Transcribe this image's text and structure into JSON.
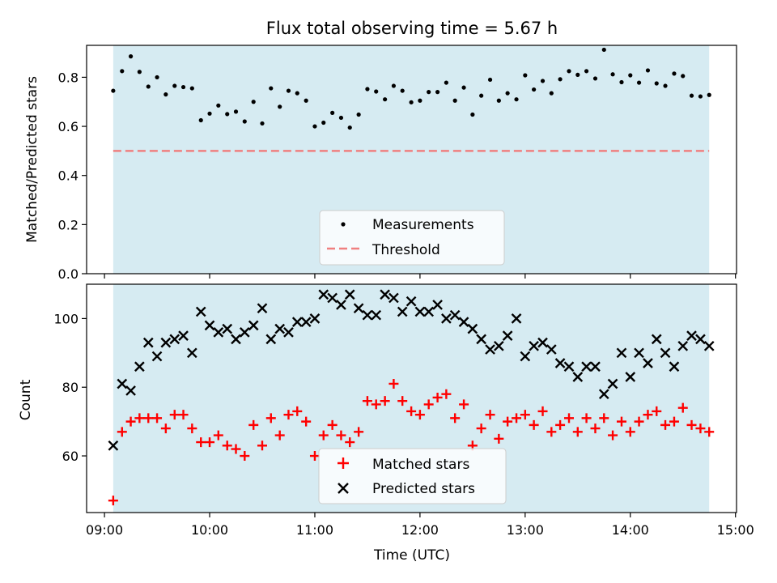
{
  "chart_data": [
    {
      "type": "scatter",
      "title": "Flux total observing time = 5.67 h",
      "ylabel": "Matched/Predicted stars",
      "xlabel": "",
      "ylim": [
        0,
        0.93
      ],
      "yticks": [
        0.0,
        0.2,
        0.4,
        0.6,
        0.8
      ],
      "ytick_labels": [
        "0.0",
        "0.2",
        "0.4",
        "0.6",
        "0.8"
      ],
      "observing_window": [
        9.083,
        14.75
      ],
      "threshold": 0.5,
      "legend": {
        "position": "lower-center",
        "entries": [
          "Measurements",
          "Threshold"
        ]
      },
      "series": [
        {
          "name": "Measurements",
          "x": [
            9.083,
            9.167,
            9.25,
            9.333,
            9.417,
            9.5,
            9.583,
            9.667,
            9.75,
            9.833,
            9.917,
            10.0,
            10.083,
            10.167,
            10.25,
            10.333,
            10.417,
            10.5,
            10.583,
            10.667,
            10.75,
            10.833,
            10.917,
            11.0,
            11.083,
            11.167,
            11.25,
            11.333,
            11.417,
            11.5,
            11.583,
            11.667,
            11.75,
            11.833,
            11.917,
            12.0,
            12.083,
            12.167,
            12.25,
            12.333,
            12.417,
            12.5,
            12.583,
            12.667,
            12.75,
            12.833,
            12.917,
            13.0,
            13.083,
            13.167,
            13.25,
            13.333,
            13.417,
            13.5,
            13.583,
            13.667,
            13.75,
            13.833,
            13.917,
            14.0,
            14.083,
            14.167,
            14.25,
            14.333,
            14.417,
            14.5,
            14.583,
            14.667,
            14.75
          ],
          "y": [
            0.745,
            0.825,
            0.885,
            0.822,
            0.762,
            0.8,
            0.73,
            0.765,
            0.76,
            0.755,
            0.625,
            0.652,
            0.685,
            0.65,
            0.66,
            0.62,
            0.7,
            0.612,
            0.755,
            0.68,
            0.745,
            0.735,
            0.705,
            0.6,
            0.615,
            0.655,
            0.635,
            0.595,
            0.648,
            0.752,
            0.742,
            0.71,
            0.765,
            0.745,
            0.698,
            0.705,
            0.74,
            0.74,
            0.778,
            0.705,
            0.758,
            0.648,
            0.725,
            0.79,
            0.705,
            0.735,
            0.71,
            0.808,
            0.75,
            0.785,
            0.735,
            0.792,
            0.825,
            0.81,
            0.825,
            0.795,
            0.912,
            0.812,
            0.78,
            0.808,
            0.778,
            0.828,
            0.775,
            0.765,
            0.815,
            0.805,
            0.725,
            0.722,
            0.728
          ]
        },
        {
          "name": "Threshold",
          "x": [
            9.083,
            14.75
          ],
          "y": [
            0.5,
            0.5
          ]
        }
      ]
    },
    {
      "type": "scatter",
      "title": "",
      "ylabel": "Count",
      "xlabel": "Time (UTC)",
      "ylim": [
        43.5,
        110
      ],
      "yticks": [
        60,
        80,
        100
      ],
      "ytick_labels": [
        "60",
        "80",
        "100"
      ],
      "xlim": [
        8.83,
        15.01
      ],
      "xticks": [
        9,
        10,
        11,
        12,
        13,
        14,
        15
      ],
      "xtick_labels": [
        "09:00",
        "10:00",
        "11:00",
        "12:00",
        "13:00",
        "14:00",
        "15:00"
      ],
      "legend": {
        "position": "lower-center",
        "entries": [
          "Matched stars",
          "Predicted stars"
        ]
      },
      "series": [
        {
          "name": "Matched stars",
          "x": [
            9.083,
            9.167,
            9.25,
            9.333,
            9.417,
            9.5,
            9.583,
            9.667,
            9.75,
            9.833,
            9.917,
            10.0,
            10.083,
            10.167,
            10.25,
            10.333,
            10.417,
            10.5,
            10.583,
            10.667,
            10.75,
            10.833,
            10.917,
            11.0,
            11.083,
            11.167,
            11.25,
            11.333,
            11.417,
            11.5,
            11.583,
            11.667,
            11.75,
            11.833,
            11.917,
            12.0,
            12.083,
            12.167,
            12.25,
            12.333,
            12.417,
            12.5,
            12.583,
            12.667,
            12.75,
            12.833,
            12.917,
            13.0,
            13.083,
            13.167,
            13.25,
            13.333,
            13.417,
            13.5,
            13.583,
            13.667,
            13.75,
            13.833,
            13.917,
            14.0,
            14.083,
            14.167,
            14.25,
            14.333,
            14.417,
            14.5,
            14.583,
            14.667,
            14.75
          ],
          "y": [
            47,
            67,
            70,
            71,
            71,
            71,
            68,
            72,
            72,
            68,
            64,
            64,
            66,
            63,
            62,
            60,
            69,
            63,
            71,
            66,
            72,
            73,
            70,
            60,
            66,
            69,
            66,
            64,
            67,
            76,
            75,
            76,
            81,
            76,
            73,
            72,
            75,
            77,
            78,
            71,
            75,
            63,
            68,
            72,
            65,
            70,
            71,
            72,
            69,
            73,
            67,
            69,
            71,
            67,
            71,
            68,
            71,
            66,
            70,
            67,
            70,
            72,
            73,
            69,
            70,
            74,
            69,
            68,
            67
          ]
        },
        {
          "name": "Predicted stars",
          "x": [
            9.083,
            9.167,
            9.25,
            9.333,
            9.417,
            9.5,
            9.583,
            9.667,
            9.75,
            9.833,
            9.917,
            10.0,
            10.083,
            10.167,
            10.25,
            10.333,
            10.417,
            10.5,
            10.583,
            10.667,
            10.75,
            10.833,
            10.917,
            11.0,
            11.083,
            11.167,
            11.25,
            11.333,
            11.417,
            11.5,
            11.583,
            11.667,
            11.75,
            11.833,
            11.917,
            12.0,
            12.083,
            12.167,
            12.25,
            12.333,
            12.417,
            12.5,
            12.583,
            12.667,
            12.75,
            12.833,
            12.917,
            13.0,
            13.083,
            13.167,
            13.25,
            13.333,
            13.417,
            13.5,
            13.583,
            13.667,
            13.75,
            13.833,
            13.917,
            14.0,
            14.083,
            14.167,
            14.25,
            14.333,
            14.417,
            14.5,
            14.583,
            14.667,
            14.75
          ],
          "y": [
            63,
            81,
            79,
            86,
            93,
            89,
            93,
            94,
            95,
            90,
            102,
            98,
            96,
            97,
            94,
            96,
            98,
            103,
            94,
            97,
            96,
            99,
            99,
            100,
            107,
            106,
            104,
            107,
            103,
            101,
            101,
            107,
            106,
            102,
            105,
            102,
            102,
            104,
            100,
            101,
            99,
            97,
            94,
            91,
            92,
            95,
            100,
            89,
            92,
            93,
            91,
            87,
            86,
            83,
            86,
            86,
            78,
            81,
            90,
            83,
            90,
            87,
            94,
            90,
            86,
            92,
            95,
            94,
            92
          ]
        }
      ]
    }
  ],
  "colors": {
    "band": "#add8e6",
    "measurements": "#000000",
    "threshold": "#f08080",
    "matched": "#ff0000",
    "predicted": "#000000"
  }
}
